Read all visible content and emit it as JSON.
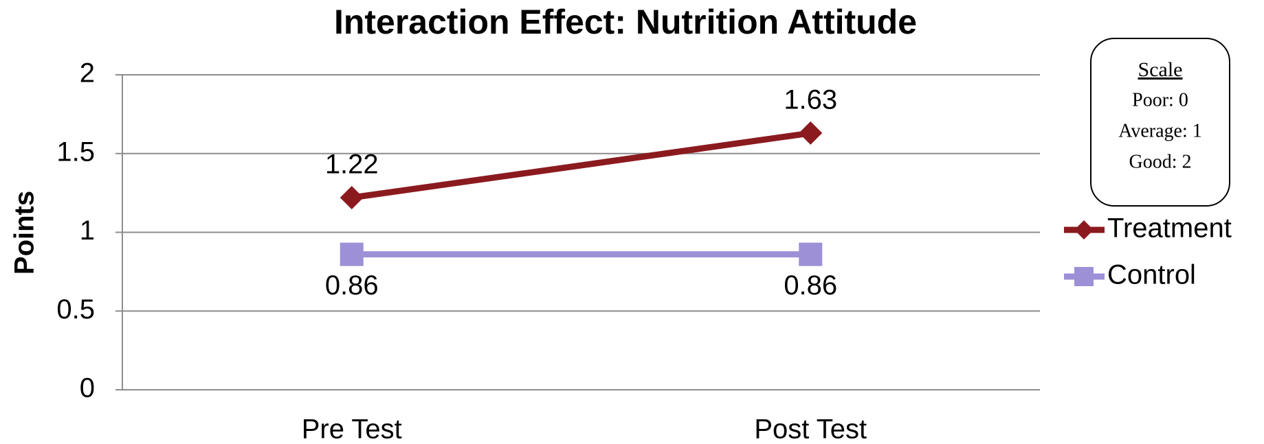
{
  "chart_data": {
    "type": "line",
    "title": "Interaction Effect: Nutrition Attitude",
    "y_label": "Points",
    "categories": [
      "Pre Test",
      "Post Test"
    ],
    "series": [
      {
        "name": "Treatment",
        "color": "#8b1a1f",
        "marker": "diamond",
        "values": [
          1.22,
          1.63
        ]
      },
      {
        "name": "Control",
        "color": "#9d90d6",
        "marker": "square",
        "values": [
          0.86,
          0.86
        ]
      }
    ],
    "ylim": [
      0,
      2
    ],
    "yticks": [
      0,
      0.5,
      1,
      1.5,
      2
    ],
    "grid": true,
    "legend": "right",
    "annotation": {
      "title": "Scale",
      "lines": [
        "Poor: 0",
        "Average: 1",
        "Good: 2"
      ]
    }
  }
}
